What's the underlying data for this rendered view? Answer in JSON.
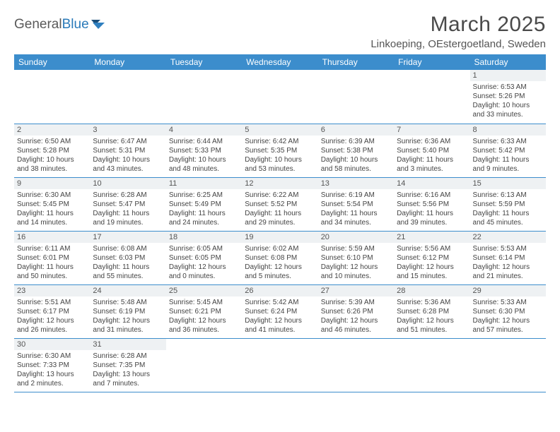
{
  "logo": {
    "text1": "General",
    "text2": "Blue"
  },
  "title": "March 2025",
  "location": "Linkoeping, OEstergoetland, Sweden",
  "colors": {
    "header_bg": "#3c8dcc",
    "header_text": "#ffffff",
    "border": "#3c8dcc",
    "daynum_bg": "#eef1f3",
    "text": "#444444"
  },
  "dayNames": [
    "Sunday",
    "Monday",
    "Tuesday",
    "Wednesday",
    "Thursday",
    "Friday",
    "Saturday"
  ],
  "weeks": [
    [
      {
        "n": "",
        "lines": []
      },
      {
        "n": "",
        "lines": []
      },
      {
        "n": "",
        "lines": []
      },
      {
        "n": "",
        "lines": []
      },
      {
        "n": "",
        "lines": []
      },
      {
        "n": "",
        "lines": []
      },
      {
        "n": "1",
        "lines": [
          "Sunrise: 6:53 AM",
          "Sunset: 5:26 PM",
          "Daylight: 10 hours",
          "and 33 minutes."
        ]
      }
    ],
    [
      {
        "n": "2",
        "lines": [
          "Sunrise: 6:50 AM",
          "Sunset: 5:28 PM",
          "Daylight: 10 hours",
          "and 38 minutes."
        ]
      },
      {
        "n": "3",
        "lines": [
          "Sunrise: 6:47 AM",
          "Sunset: 5:31 PM",
          "Daylight: 10 hours",
          "and 43 minutes."
        ]
      },
      {
        "n": "4",
        "lines": [
          "Sunrise: 6:44 AM",
          "Sunset: 5:33 PM",
          "Daylight: 10 hours",
          "and 48 minutes."
        ]
      },
      {
        "n": "5",
        "lines": [
          "Sunrise: 6:42 AM",
          "Sunset: 5:35 PM",
          "Daylight: 10 hours",
          "and 53 minutes."
        ]
      },
      {
        "n": "6",
        "lines": [
          "Sunrise: 6:39 AM",
          "Sunset: 5:38 PM",
          "Daylight: 10 hours",
          "and 58 minutes."
        ]
      },
      {
        "n": "7",
        "lines": [
          "Sunrise: 6:36 AM",
          "Sunset: 5:40 PM",
          "Daylight: 11 hours",
          "and 3 minutes."
        ]
      },
      {
        "n": "8",
        "lines": [
          "Sunrise: 6:33 AM",
          "Sunset: 5:42 PM",
          "Daylight: 11 hours",
          "and 9 minutes."
        ]
      }
    ],
    [
      {
        "n": "9",
        "lines": [
          "Sunrise: 6:30 AM",
          "Sunset: 5:45 PM",
          "Daylight: 11 hours",
          "and 14 minutes."
        ]
      },
      {
        "n": "10",
        "lines": [
          "Sunrise: 6:28 AM",
          "Sunset: 5:47 PM",
          "Daylight: 11 hours",
          "and 19 minutes."
        ]
      },
      {
        "n": "11",
        "lines": [
          "Sunrise: 6:25 AM",
          "Sunset: 5:49 PM",
          "Daylight: 11 hours",
          "and 24 minutes."
        ]
      },
      {
        "n": "12",
        "lines": [
          "Sunrise: 6:22 AM",
          "Sunset: 5:52 PM",
          "Daylight: 11 hours",
          "and 29 minutes."
        ]
      },
      {
        "n": "13",
        "lines": [
          "Sunrise: 6:19 AM",
          "Sunset: 5:54 PM",
          "Daylight: 11 hours",
          "and 34 minutes."
        ]
      },
      {
        "n": "14",
        "lines": [
          "Sunrise: 6:16 AM",
          "Sunset: 5:56 PM",
          "Daylight: 11 hours",
          "and 39 minutes."
        ]
      },
      {
        "n": "15",
        "lines": [
          "Sunrise: 6:13 AM",
          "Sunset: 5:59 PM",
          "Daylight: 11 hours",
          "and 45 minutes."
        ]
      }
    ],
    [
      {
        "n": "16",
        "lines": [
          "Sunrise: 6:11 AM",
          "Sunset: 6:01 PM",
          "Daylight: 11 hours",
          "and 50 minutes."
        ]
      },
      {
        "n": "17",
        "lines": [
          "Sunrise: 6:08 AM",
          "Sunset: 6:03 PM",
          "Daylight: 11 hours",
          "and 55 minutes."
        ]
      },
      {
        "n": "18",
        "lines": [
          "Sunrise: 6:05 AM",
          "Sunset: 6:05 PM",
          "Daylight: 12 hours",
          "and 0 minutes."
        ]
      },
      {
        "n": "19",
        "lines": [
          "Sunrise: 6:02 AM",
          "Sunset: 6:08 PM",
          "Daylight: 12 hours",
          "and 5 minutes."
        ]
      },
      {
        "n": "20",
        "lines": [
          "Sunrise: 5:59 AM",
          "Sunset: 6:10 PM",
          "Daylight: 12 hours",
          "and 10 minutes."
        ]
      },
      {
        "n": "21",
        "lines": [
          "Sunrise: 5:56 AM",
          "Sunset: 6:12 PM",
          "Daylight: 12 hours",
          "and 15 minutes."
        ]
      },
      {
        "n": "22",
        "lines": [
          "Sunrise: 5:53 AM",
          "Sunset: 6:14 PM",
          "Daylight: 12 hours",
          "and 21 minutes."
        ]
      }
    ],
    [
      {
        "n": "23",
        "lines": [
          "Sunrise: 5:51 AM",
          "Sunset: 6:17 PM",
          "Daylight: 12 hours",
          "and 26 minutes."
        ]
      },
      {
        "n": "24",
        "lines": [
          "Sunrise: 5:48 AM",
          "Sunset: 6:19 PM",
          "Daylight: 12 hours",
          "and 31 minutes."
        ]
      },
      {
        "n": "25",
        "lines": [
          "Sunrise: 5:45 AM",
          "Sunset: 6:21 PM",
          "Daylight: 12 hours",
          "and 36 minutes."
        ]
      },
      {
        "n": "26",
        "lines": [
          "Sunrise: 5:42 AM",
          "Sunset: 6:24 PM",
          "Daylight: 12 hours",
          "and 41 minutes."
        ]
      },
      {
        "n": "27",
        "lines": [
          "Sunrise: 5:39 AM",
          "Sunset: 6:26 PM",
          "Daylight: 12 hours",
          "and 46 minutes."
        ]
      },
      {
        "n": "28",
        "lines": [
          "Sunrise: 5:36 AM",
          "Sunset: 6:28 PM",
          "Daylight: 12 hours",
          "and 51 minutes."
        ]
      },
      {
        "n": "29",
        "lines": [
          "Sunrise: 5:33 AM",
          "Sunset: 6:30 PM",
          "Daylight: 12 hours",
          "and 57 minutes."
        ]
      }
    ],
    [
      {
        "n": "30",
        "lines": [
          "Sunrise: 6:30 AM",
          "Sunset: 7:33 PM",
          "Daylight: 13 hours",
          "and 2 minutes."
        ]
      },
      {
        "n": "31",
        "lines": [
          "Sunrise: 6:28 AM",
          "Sunset: 7:35 PM",
          "Daylight: 13 hours",
          "and 7 minutes."
        ]
      },
      {
        "n": "",
        "lines": []
      },
      {
        "n": "",
        "lines": []
      },
      {
        "n": "",
        "lines": []
      },
      {
        "n": "",
        "lines": []
      },
      {
        "n": "",
        "lines": []
      }
    ]
  ]
}
